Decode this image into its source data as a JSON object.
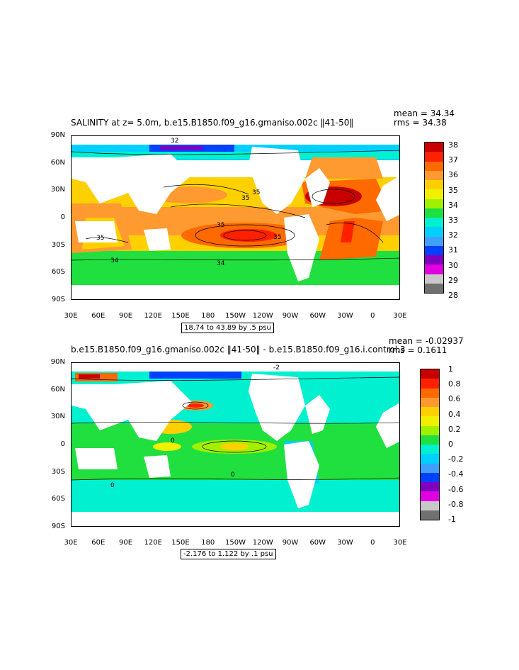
{
  "panels": [
    {
      "title": "SALINITY at z=    5.0m, b.e15.B1850.f09_g16.gmaniso.002c ‖41-50‖",
      "mean": "mean = 34.34",
      "rms": "rms = 34.38",
      "range_label": "18.74 to 43.89 by .5 psu",
      "colorbar_labels": [
        "38",
        "37",
        "36",
        "35",
        "34",
        "33",
        "32",
        "31",
        "30",
        "29",
        "28"
      ],
      "colorbar_colors": [
        "#c80000",
        "#ff2000",
        "#ff6a00",
        "#ff9a30",
        "#ffd000",
        "#f0f000",
        "#a0f000",
        "#20e040",
        "#00f0d0",
        "#00d0ff",
        "#40a0ff",
        "#0040ff",
        "#8000c0",
        "#e000e0",
        "#c8c8c8",
        "#707070"
      ],
      "contour_labels": [
        "32",
        "35",
        "35",
        "35",
        "35",
        "34",
        "34",
        "35"
      ]
    },
    {
      "title": "b.e15.B1850.f09_g16.gmaniso.002c ‖41-50‖  -  b.e15.B1850.f09_g16.i.control.3",
      "mean": "mean = -0.02937",
      "rms": "rms = 0.1611",
      "range_label": "-2.176 to 1.122 by .1 psu",
      "colorbar_labels": [
        "1",
        "0.8",
        "0.6",
        "0.4",
        "0.2",
        "0",
        "-0.2",
        "-0.4",
        "-0.6",
        "-0.8",
        "-1"
      ],
      "colorbar_colors": [
        "#c80000",
        "#ff2000",
        "#ff6a00",
        "#ff9a30",
        "#ffd000",
        "#f0f000",
        "#a0f000",
        "#20e040",
        "#00f0d0",
        "#00d0ff",
        "#40a0ff",
        "#0040ff",
        "#8000c0",
        "#e000e0",
        "#c8c8c8",
        "#707070"
      ],
      "contour_labels": [
        "0",
        "0",
        "0",
        "-2"
      ]
    }
  ],
  "axes": {
    "lat_labels": [
      "90N",
      "60N",
      "30N",
      "0",
      "30S",
      "60S",
      "90S"
    ],
    "lon_labels": [
      "30E",
      "60E",
      "90E",
      "120E",
      "150E",
      "180",
      "150W",
      "120W",
      "90W",
      "60W",
      "30W",
      "0",
      "30E"
    ]
  }
}
